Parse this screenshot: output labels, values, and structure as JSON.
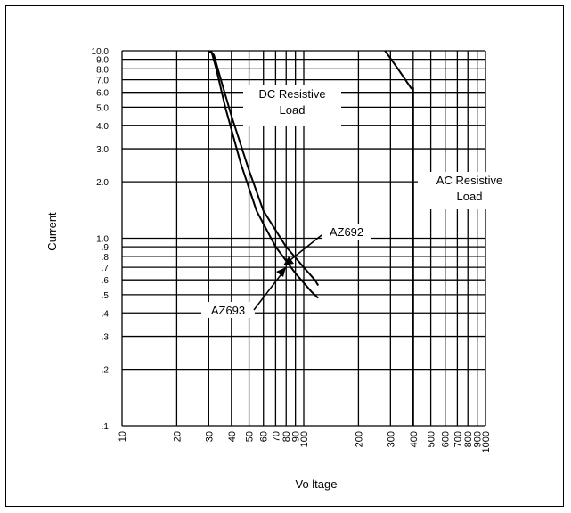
{
  "chart_data": {
    "type": "line",
    "title": "",
    "xlabel": "Vo ltage",
    "ylabel": "Current",
    "x_scale": "log",
    "y_scale": "log",
    "xlim": [
      10,
      1000
    ],
    "ylim": [
      0.1,
      10
    ],
    "grid": true,
    "x_tick_labels": [
      "10",
      "20",
      "30",
      "40",
      "50",
      "60",
      "70",
      "80",
      "90",
      "100",
      "200",
      "300",
      "400",
      "500",
      "600",
      "700",
      "800",
      "900",
      "1000"
    ],
    "x_tick_values": [
      10,
      20,
      30,
      40,
      50,
      60,
      70,
      80,
      90,
      100,
      200,
      300,
      400,
      500,
      600,
      700,
      800,
      900,
      1000
    ],
    "y_tick_labels": [
      "10.0",
      "9.0",
      "8.0",
      "7.0",
      "6.0",
      "5.0",
      "4.0",
      "3.0",
      "2.0",
      "1.0",
      ".9",
      ".8",
      ".7",
      ".6",
      ".5",
      ".4",
      ".3",
      ".2",
      ".1"
    ],
    "y_tick_values": [
      10,
      9,
      8,
      7,
      6,
      5,
      4,
      3,
      2,
      1,
      0.9,
      0.8,
      0.7,
      0.6,
      0.5,
      0.4,
      0.3,
      0.2,
      0.1
    ],
    "series": [
      {
        "name": "AZ692",
        "x": [
          30,
          32,
          35,
          40,
          50,
          60,
          80,
          100,
          115,
          120
        ],
        "y": [
          10,
          9.5,
          7,
          4.5,
          2.3,
          1.4,
          0.9,
          0.7,
          0.6,
          0.56
        ]
      },
      {
        "name": "AZ693",
        "x": [
          31,
          33,
          37,
          45,
          55,
          70,
          90,
          110,
          120
        ],
        "y": [
          10,
          8,
          5,
          2.5,
          1.4,
          0.9,
          0.65,
          0.52,
          0.48
        ]
      },
      {
        "name": "AC Resistive Load",
        "x": [
          280,
          330,
          390,
          400,
          400
        ],
        "y": [
          10,
          8,
          6.3,
          6.3,
          0.1
        ]
      }
    ],
    "annotations": [
      {
        "text_lines": [
          "DC Resistive",
          "Load"
        ]
      },
      {
        "text_lines": [
          "AC Resistive",
          "Load"
        ]
      },
      {
        "text_lines": [
          "AZ692"
        ]
      },
      {
        "text_lines": [
          "AZ693"
        ]
      }
    ]
  }
}
